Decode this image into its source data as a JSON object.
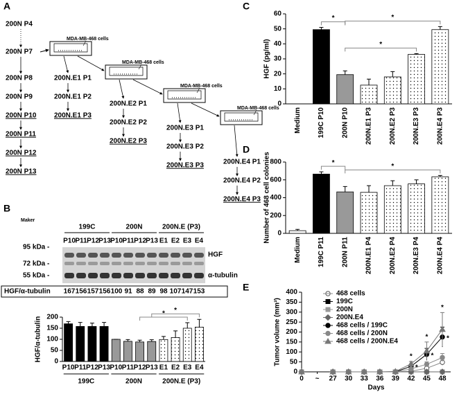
{
  "panel_labels": [
    "A",
    "B",
    "C",
    "D",
    "E"
  ],
  "diagram": {
    "parental": [
      "200N P4",
      "200N P7",
      "200N P8",
      "200N P9",
      "200N P10",
      "200N P11",
      "200N P12",
      "200N P13"
    ],
    "cocultures": [
      {
        "dish_label": "MDA-MB-468 cells",
        "passages": [
          "200N.E1 P1",
          "200N.E1 P2",
          "200N.E1 P3"
        ]
      },
      {
        "dish_label": "MDA-MB-468 cells",
        "passages": [
          "200N.E2 P1",
          "200N.E2 P2",
          "200N.E2 P3"
        ]
      },
      {
        "dish_label": "MDA-MB-468 cells",
        "passages": [
          "200N.E3 P1",
          "200N.E3 P2",
          "200N.E3 P3"
        ]
      },
      {
        "dish_label": "MDA-MB-468 cells",
        "passages": [
          "200N.E4 P1",
          "200N.E4 P2",
          "200N.E4 P3"
        ]
      }
    ]
  },
  "blot": {
    "marker_label": "Maker",
    "size_markers": [
      "95 kDa -",
      "72 kDa -",
      "55 kDa -"
    ],
    "bands": [
      "HGF",
      "α-tubulin"
    ],
    "groups": [
      {
        "label": "199C",
        "lanes": [
          "P10",
          "P11",
          "P12",
          "P13"
        ]
      },
      {
        "label": "200N",
        "lanes": [
          "P10",
          "P11",
          "P12",
          "P13"
        ]
      },
      {
        "label": "200N.E (P3)",
        "lanes": [
          "E1",
          "E2",
          "E3",
          "E4"
        ]
      }
    ],
    "ratio_label": "HGF/α-tubulin",
    "ratios": [
      167,
      156,
      157,
      156,
      100,
      91,
      88,
      89,
      98,
      107,
      147,
      153
    ]
  },
  "chart_data": [
    {
      "type": "bar",
      "y_label": "HGF/α-tubulin",
      "categories": [
        "P10",
        "P11",
        "P12",
        "P13",
        "P10",
        "P11",
        "P12",
        "P13",
        "E1",
        "E2",
        "E3",
        "E4"
      ],
      "values": [
        170,
        158,
        158,
        158,
        100,
        91,
        88,
        90,
        99,
        108,
        150,
        155
      ],
      "errors": [
        10,
        18,
        15,
        18,
        0,
        8,
        8,
        8,
        14,
        30,
        25,
        35
      ],
      "bar_colors": [
        "#000000",
        "#000000",
        "#000000",
        "#000000",
        "#999999",
        "#999999",
        "#999999",
        "#999999",
        "#ffffff",
        "#ffffff",
        "#ffffff",
        "#ffffff"
      ],
      "bar_patterns": [
        "solid",
        "solid",
        "solid",
        "solid",
        "solid",
        "solid",
        "solid",
        "solid",
        "dots",
        "dots",
        "dots",
        "dots"
      ],
      "groups": [
        {
          "label": "199C",
          "from": 0,
          "to": 3
        },
        {
          "label": "200N",
          "from": 4,
          "to": 7
        },
        {
          "label": "200N.E (P3)",
          "from": 8,
          "to": 11
        }
      ],
      "significance": [
        {
          "from": 6,
          "to": 10,
          "label": "*"
        },
        {
          "from": 7,
          "to": 11,
          "label": "*"
        }
      ],
      "ylim": [
        0,
        200
      ],
      "yticks": [
        0,
        50,
        100,
        150,
        200
      ]
    },
    {
      "type": "bar",
      "y_label": "HGF (pg/ml)",
      "categories": [
        "Medium",
        "199C P10",
        "200N P10",
        "200N.E1 P3",
        "200N.E2 P3",
        "200N.E3 P3",
        "200N.E4 P3"
      ],
      "values": [
        0,
        49.5,
        19.5,
        12.5,
        18,
        33,
        49.5
      ],
      "errors": [
        null,
        1.5,
        2.5,
        4,
        3.5,
        0.5,
        2
      ],
      "bar_colors": [
        "#ffffff",
        "#000000",
        "#999999",
        "#ffffff",
        "#ffffff",
        "#ffffff",
        "#ffffff"
      ],
      "bar_patterns": [
        "solid",
        "solid",
        "solid",
        "dots",
        "dots",
        "dots",
        "dots"
      ],
      "significance": [
        {
          "from": 1,
          "to": 2,
          "label": "*"
        },
        {
          "from": 2,
          "to": 5,
          "label": "*"
        },
        {
          "from": 2,
          "to": 6,
          "label": "*"
        }
      ],
      "ylim": [
        0,
        60
      ],
      "yticks": [
        0,
        10,
        20,
        30,
        40,
        50,
        60
      ]
    },
    {
      "type": "bar",
      "y_label": "Number of 468 cell colonies",
      "categories": [
        "Medium",
        "199C P11",
        "200N P11",
        "200N.E1 P4",
        "200N.E2 P4",
        "200N.E3 P4",
        "200N.E4 P4"
      ],
      "values": [
        30,
        665,
        465,
        460,
        535,
        555,
        635
      ],
      "errors": [
        15,
        25,
        60,
        75,
        55,
        45,
        15
      ],
      "bar_colors": [
        "#ffffff",
        "#000000",
        "#999999",
        "#ffffff",
        "#ffffff",
        "#ffffff",
        "#ffffff"
      ],
      "bar_patterns": [
        "solid",
        "solid",
        "solid",
        "dots",
        "dots",
        "dots",
        "dots"
      ],
      "significance": [
        {
          "from": 1,
          "to": 2,
          "label": "*"
        },
        {
          "from": 2,
          "to": 6,
          "label": "*"
        }
      ],
      "ylim": [
        0,
        800
      ],
      "yticks": [
        0,
        200,
        400,
        600,
        800
      ]
    },
    {
      "type": "line",
      "x_label": "Days",
      "y_label": "Tumor volume (mm³)",
      "categories": [
        "0",
        "~",
        "27",
        "30",
        "33",
        "36",
        "39",
        "42",
        "45",
        "48"
      ],
      "series": [
        {
          "name": "468 cells",
          "color": "#888888",
          "marker": "circle-open",
          "values": [
            0,
            null,
            0,
            0,
            0,
            0,
            0,
            3,
            18,
            48
          ],
          "errors": [
            null,
            null,
            null,
            null,
            null,
            null,
            null,
            3,
            8,
            15
          ]
        },
        {
          "name": "199C",
          "color": "#000000",
          "marker": "square",
          "values": [
            0,
            null,
            0,
            0,
            0,
            0,
            0,
            0,
            0,
            0
          ],
          "errors": [
            null,
            null,
            null,
            null,
            null,
            null,
            null,
            null,
            null,
            null
          ]
        },
        {
          "name": "200N",
          "color": "#999999",
          "marker": "square",
          "values": [
            0,
            null,
            0,
            0,
            0,
            0,
            0,
            0,
            0,
            0
          ],
          "errors": [
            null,
            null,
            null,
            null,
            null,
            null,
            null,
            null,
            null,
            null
          ]
        },
        {
          "name": "200N.E4",
          "color": "#666666",
          "marker": "diamond",
          "values": [
            0,
            null,
            0,
            0,
            0,
            0,
            0,
            0,
            0,
            0
          ],
          "errors": [
            null,
            null,
            null,
            null,
            null,
            null,
            null,
            null,
            null,
            null
          ]
        },
        {
          "name": "468 cells / 199C",
          "color": "#000000",
          "marker": "circle",
          "values": [
            0,
            null,
            0,
            0,
            0,
            0,
            0,
            28,
            88,
            175
          ],
          "errors": [
            null,
            null,
            null,
            null,
            null,
            null,
            null,
            10,
            30,
            50
          ]
        },
        {
          "name": "468 cells / 200N",
          "color": "#888888",
          "marker": "circle",
          "values": [
            0,
            null,
            0,
            0,
            0,
            0,
            0,
            15,
            38,
            72
          ],
          "errors": [
            null,
            null,
            null,
            null,
            null,
            null,
            null,
            6,
            12,
            20
          ]
        },
        {
          "name": "468 cells / 200N.E4",
          "color": "#777777",
          "marker": "triangle",
          "values": [
            0,
            null,
            0,
            0,
            0,
            0,
            2,
            40,
            105,
            213
          ],
          "errors": [
            null,
            null,
            null,
            null,
            null,
            null,
            null,
            12,
            45,
            85
          ]
        }
      ],
      "annotations": [
        {
          "series": 6,
          "x": 7,
          "label": "*",
          "position": "above"
        },
        {
          "series": 4,
          "x": 7,
          "label": "*",
          "position": "right"
        },
        {
          "series": 6,
          "x": 8,
          "label": "*",
          "position": "above"
        },
        {
          "series": 4,
          "x": 8,
          "label": "*",
          "position": "right"
        },
        {
          "series": 6,
          "x": 9,
          "label": "*",
          "position": "above"
        },
        {
          "series": 4,
          "x": 9,
          "label": "*",
          "position": "right"
        }
      ],
      "ylim": [
        0,
        400
      ],
      "yticks": [
        0,
        50,
        100,
        150,
        200,
        250,
        300,
        350,
        400
      ]
    }
  ]
}
